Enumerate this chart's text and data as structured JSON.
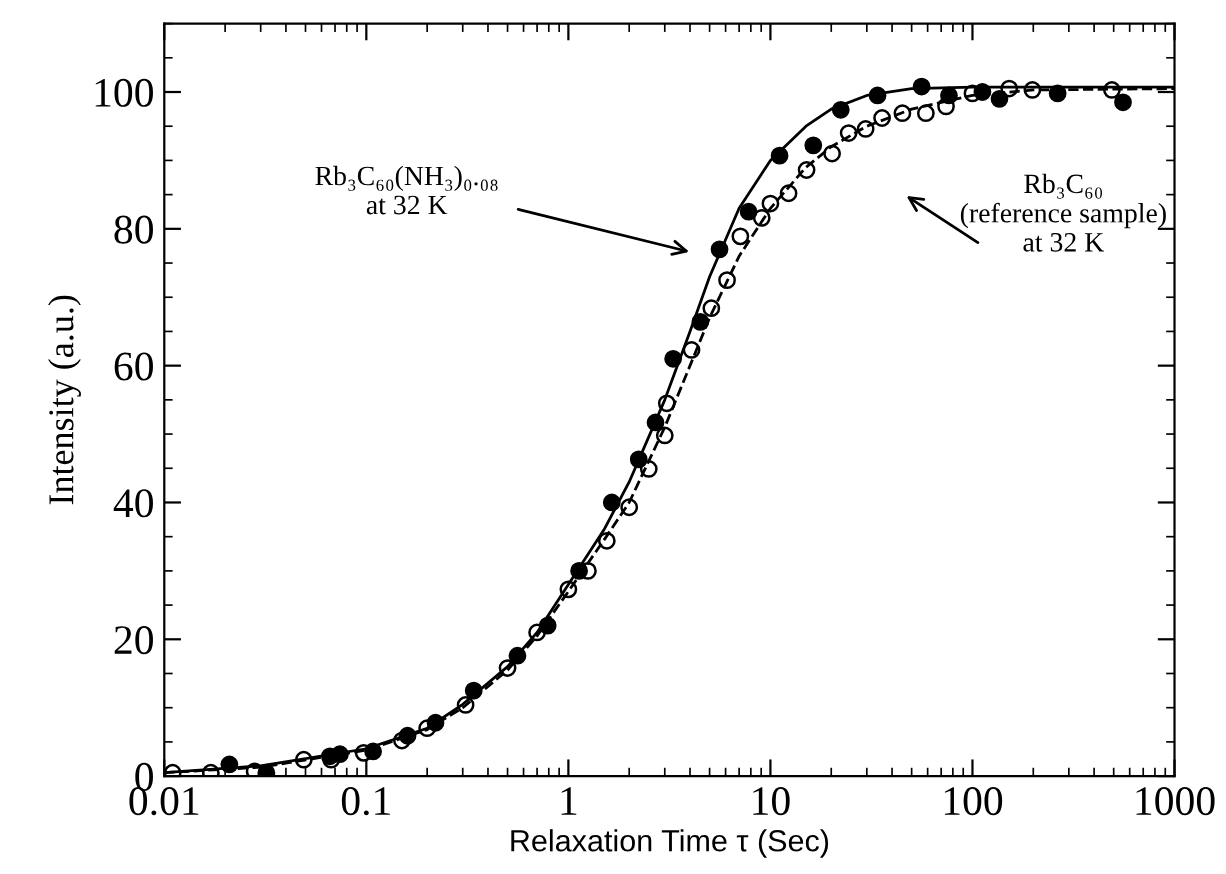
{
  "chart_data": {
    "type": "scatter",
    "xlabel": "Relaxation Time τ (Sec)",
    "ylabel": "Intensity (a.u.)",
    "log": "x",
    "xlim": [
      0.01,
      1000
    ],
    "xticks": [
      0.01,
      0.1,
      1,
      10,
      100,
      1000
    ],
    "ylim": [
      0,
      110
    ],
    "yticks": [
      0,
      20,
      40,
      60,
      80,
      100
    ],
    "grid": false,
    "series": [
      {
        "marker": "circle",
        "color": "#000000",
        "x": [
          0.021,
          0.032,
          0.066,
          0.074,
          0.108,
          0.16,
          0.22,
          0.34,
          0.56,
          0.79,
          1.13,
          1.64,
          2.23,
          2.7,
          3.3,
          4.5,
          5.6,
          7.8,
          11.1,
          16.3,
          22.3,
          33.9,
          56,
          76.5,
          112,
          136,
          264,
          556
        ],
        "values": [
          1.7,
          0.5,
          2.9,
          3.2,
          3.6,
          5.9,
          7.8,
          12.5,
          17.6,
          22,
          30,
          40,
          46.3,
          51.7,
          61,
          66.4,
          77,
          82.5,
          90.7,
          92.2,
          97.4,
          99.5,
          100.8,
          99.5,
          100,
          99,
          99.8,
          98.5
        ]
      },
      {
        "marker": "circle",
        "color": "#000000",
        "x": [
          0.011,
          0.017,
          0.028,
          0.049,
          0.067,
          0.097,
          0.15,
          0.2,
          0.31,
          0.5,
          0.7,
          1.0,
          1.25,
          1.55,
          2.0,
          2.5,
          3.0,
          3.07,
          4.07,
          5.1,
          6.1,
          7.1,
          9.06,
          10,
          12.3,
          15.1,
          20.2,
          24.4,
          29.6,
          35.7,
          45,
          58.8,
          74,
          100,
          152,
          198,
          490
        ],
        "values": [
          0.5,
          0.5,
          0.7,
          2.4,
          2.4,
          3.4,
          5.2,
          7,
          10.4,
          15.8,
          21,
          27.3,
          30,
          34.4,
          39.3,
          44.9,
          49.8,
          54.5,
          62.3,
          68.4,
          72.5,
          78.9,
          81.6,
          83.7,
          85.2,
          88.6,
          91,
          94,
          94.6,
          96.2,
          96.9,
          96.9,
          97.9,
          99.8,
          100.5,
          100.3,
          100.3
        ]
      },
      {
        "type": "line",
        "line_style": "solid",
        "color": "#000000",
        "x": [
          0.01,
          0.03,
          0.1,
          0.2,
          0.3,
          0.5,
          0.7,
          1,
          1.5,
          2,
          3,
          4,
          5,
          7,
          10,
          15,
          20,
          30,
          50,
          100,
          1000
        ],
        "values": [
          0.5,
          1.5,
          4,
          7,
          10.5,
          16,
          21,
          28,
          36,
          43,
          55,
          65,
          73,
          83,
          90,
          95,
          97.5,
          99.5,
          100.5,
          100.7,
          100.7
        ]
      },
      {
        "type": "line",
        "line_style": "dashed",
        "color": "#000000",
        "x": [
          0.01,
          0.03,
          0.1,
          0.2,
          0.3,
          0.5,
          0.7,
          1,
          1.5,
          2,
          3,
          4,
          5,
          7,
          10,
          15,
          20,
          30,
          50,
          100,
          200,
          1000
        ],
        "values": [
          0.5,
          1.3,
          3.8,
          6.8,
          10,
          15.5,
          20.5,
          27,
          34.5,
          40,
          51,
          60,
          67,
          76,
          83,
          89,
          92,
          95,
          97.5,
          99.5,
          100.3,
          100.5
        ]
      }
    ],
    "annotations": [
      "Rb₃C₆₀(NH₃)₀.₀₈\nat 32 K",
      "Rb₃C₆₀\n(reference sample)\nat 32 K"
    ]
  }
}
